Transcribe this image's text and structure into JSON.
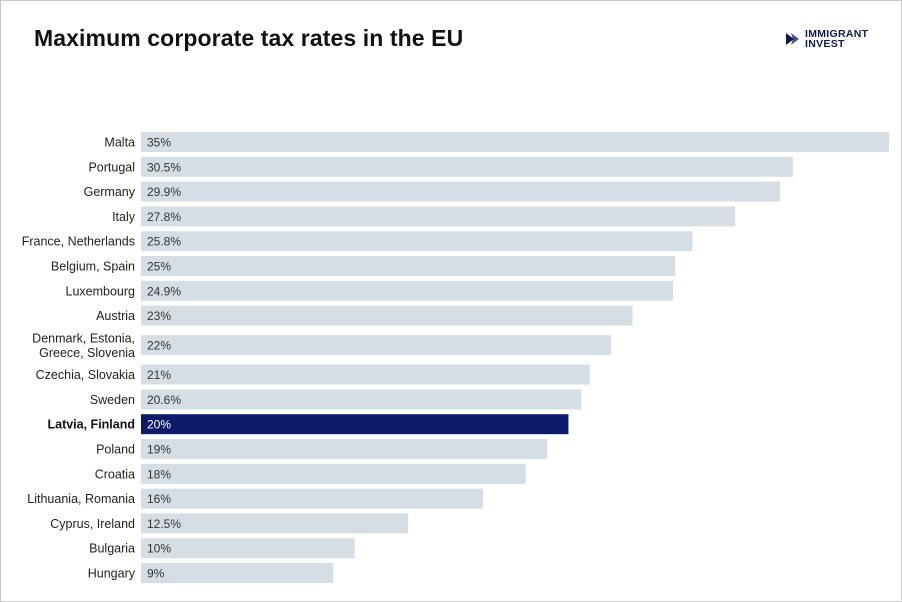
{
  "brand": {
    "line1": "IMMIGRANT",
    "line2": "INVEST",
    "color": "#0f1b4f"
  },
  "chart_data": {
    "type": "bar",
    "orientation": "horizontal",
    "title": "Maximum corporate tax rates in the EU",
    "xlabel": "",
    "ylabel": "",
    "xlim": [
      0,
      35
    ],
    "grid": false,
    "legend": "none",
    "bar_color": "#d5dee5",
    "highlight_color": "#0c1a6b",
    "highlight_category": "Latvia, Finland",
    "categories": [
      "Malta",
      "Portugal",
      "Germany",
      "Italy",
      "France, Netherlands",
      "Belgium, Spain",
      "Luxembourg",
      "Austria",
      "Denmark, Estonia, Greece, Slovenia",
      "Czechia, Slovakia",
      "Sweden",
      "Latvia, Finland",
      "Poland",
      "Croatia",
      "Lithuania, Romania",
      "Cyprus, Ireland",
      "Bulgaria",
      "Hungary"
    ],
    "category_lines": [
      [
        "Malta"
      ],
      [
        "Portugal"
      ],
      [
        "Germany"
      ],
      [
        "Italy"
      ],
      [
        "France, Netherlands"
      ],
      [
        "Belgium, Spain"
      ],
      [
        "Luxembourg"
      ],
      [
        "Austria"
      ],
      [
        "Denmark, Estonia,",
        "Greece, Slovenia"
      ],
      [
        "Czechia, Slovakia"
      ],
      [
        "Sweden"
      ],
      [
        "Latvia, Finland"
      ],
      [
        "Poland"
      ],
      [
        "Croatia"
      ],
      [
        "Lithuania, Romania"
      ],
      [
        "Cyprus, Ireland"
      ],
      [
        "Bulgaria"
      ],
      [
        "Hungary"
      ]
    ],
    "values": [
      35,
      30.5,
      29.9,
      27.8,
      25.8,
      25,
      24.9,
      23,
      22,
      21,
      20.6,
      20,
      19,
      18,
      16,
      12.5,
      10,
      9
    ],
    "value_labels": [
      "35%",
      "30.5%",
      "29.9%",
      "27.8%",
      "25.8%",
      "25%",
      "24.9%",
      "23%",
      "22%",
      "21%",
      "20.6%",
      "20%",
      "19%",
      "18%",
      "16%",
      "12.5%",
      "10%",
      "9%"
    ]
  }
}
